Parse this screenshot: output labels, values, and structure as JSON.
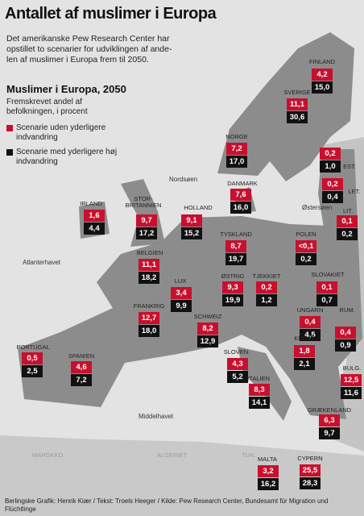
{
  "header": {
    "title": "Antallet af muslimer i Europa",
    "intro": "Det amerikanske Pew Research Center har opstillet to scenarier for udviklingen af ande-len af muslimer i Europa frem til 2050."
  },
  "legend": {
    "title": "Muslimer i Europa, 2050",
    "subtitle": "Fremskrevet andel af befolkningen, i procent",
    "red": "Scenarie uden yderligere indvandring",
    "black": "Scenarie med yderligere høj indvandring"
  },
  "countries": [
    {
      "name": "FINLAND",
      "low": "4,2",
      "high": "15,0"
    },
    {
      "name": "SVERIGE",
      "low": "11,1",
      "high": "30,6"
    },
    {
      "name": "NORGE",
      "low": "7,2",
      "high": "17,0"
    },
    {
      "name": "DANMARK",
      "low": "7,6",
      "high": "16,0"
    },
    {
      "name": "EST.",
      "low": "0,2",
      "high": "1,0"
    },
    {
      "name": "LET.",
      "low": "0,2",
      "high": "0,4"
    },
    {
      "name": "LIT.",
      "low": "0,1",
      "high": "0,2"
    },
    {
      "name": "IRLAND",
      "low": "1,6",
      "high": "4,4"
    },
    {
      "name": "STOR-BRITANNIEN",
      "low": "9,7",
      "high": "17,2"
    },
    {
      "name": "HOLLAND",
      "low": "9,1",
      "high": "15,2"
    },
    {
      "name": "TYSKLAND",
      "low": "8,7",
      "high": "19,7"
    },
    {
      "name": "POLEN",
      "low": "<0,1",
      "high": "0,2"
    },
    {
      "name": "BELGIEN",
      "low": "11,1",
      "high": "18,2"
    },
    {
      "name": "LUX",
      "low": "3,4",
      "high": "9,9"
    },
    {
      "name": "ØSTRIG",
      "low": "9,3",
      "high": "19,9"
    },
    {
      "name": "TJEKKIET",
      "low": "0,2",
      "high": "1,2"
    },
    {
      "name": "SLOVAKIET",
      "low": "0,1",
      "high": "0,7"
    },
    {
      "name": "FRANKRIG",
      "low": "12,7",
      "high": "18,0"
    },
    {
      "name": "SCHWEIZ",
      "low": "8,2",
      "high": "12,9"
    },
    {
      "name": "UNGARN",
      "low": "0,4",
      "high": "4,5"
    },
    {
      "name": "RUM.",
      "low": "0,4",
      "high": "0,9"
    },
    {
      "name": "SLOVEN.",
      "low": "4,3",
      "high": "5,2"
    },
    {
      "name": "KROAT",
      "low": "1,8",
      "high": "2,1"
    },
    {
      "name": "PORTUGAL",
      "low": "0,5",
      "high": "2,5"
    },
    {
      "name": "SPANIEN",
      "low": "4,6",
      "high": "7,2"
    },
    {
      "name": "ITALIEN",
      "low": "8,3",
      "high": "14,1"
    },
    {
      "name": "BULG.",
      "low": "12,5",
      "high": "11,6"
    },
    {
      "name": "GRÆKENLAND",
      "low": "6,3",
      "high": "9,7"
    },
    {
      "name": "MALTA",
      "low": "3,2",
      "high": "16,2"
    },
    {
      "name": "CYPERN",
      "low": "25,5",
      "high": "28,3"
    }
  ],
  "seas": [
    "Nordsøen",
    "Østersøen",
    "Atlanterhavet",
    "Middelhavet"
  ],
  "other_labels": [
    "MAROKKO",
    "ALGERIET",
    "TUN."
  ],
  "credits": "Berlingske Grafik: Henrik Kiær / Tekst: Troels Heeger / Kilde: Pew Research Center, Bundesamt für Migration und Flüchtlinge"
}
